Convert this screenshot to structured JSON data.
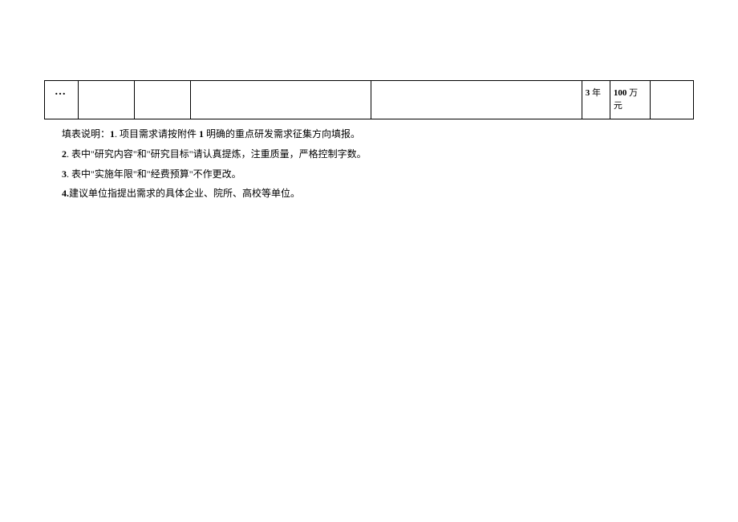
{
  "table": {
    "row": {
      "col1": "…",
      "col2": "",
      "col3": "",
      "col4": "",
      "col5": "",
      "col6_num": "3",
      "col6_unit": " 年",
      "col7_num": "100",
      "col7_unit": " 万元",
      "col8": ""
    }
  },
  "notes": {
    "label": "填表说明：",
    "item1_num": "1",
    "item1_text": ". 项目需求请按附件 ",
    "item1_num2": "1",
    "item1_text2": " 明确的重点研发需求征集方向填报。",
    "item2_num": "2",
    "item2_text": ". 表中\"研究内容\"和\"研究目标\"请认真提炼，注重质量，严格控制字数。",
    "item3_num": "3",
    "item3_text": ". 表中\"实施年限\"和\"经费预算\"不作更改。",
    "item4_num": "4.",
    "item4_text": "建议单位指提出需求的具体企业、院所、高校等单位。"
  }
}
